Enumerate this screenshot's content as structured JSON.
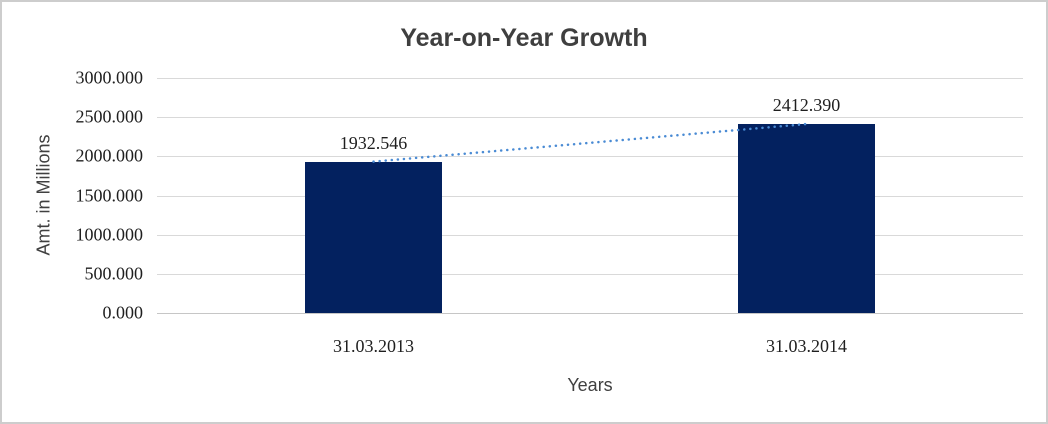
{
  "window": {
    "background": "#ffffff",
    "border_color": "#cdcdcd"
  },
  "chart_data": {
    "type": "bar",
    "title": "Year-on-Year Growth",
    "xlabel": "Years",
    "ylabel": "Amt. in Millions",
    "categories": [
      "31.03.2013",
      "31.03.2014"
    ],
    "values": [
      1932.546,
      2412.39
    ],
    "data_labels": [
      "1932.546",
      "2412.390"
    ],
    "y_ticks": [
      0,
      500,
      1000,
      1500,
      2000,
      2500,
      3000
    ],
    "y_tick_labels": [
      "0.000",
      "500.000",
      "1000.000",
      "1500.000",
      "2000.000",
      "2500.000",
      "3000.000"
    ],
    "ylim": [
      0,
      3000
    ],
    "grid": "horizontal",
    "legend": "none",
    "bar_color": "#03215f",
    "gridline_color": "#d9d9d9",
    "title_color": "#3f3f3f",
    "axis_text_color": "#1f1f1f",
    "trendline": {
      "style": "dotted",
      "color": "#4a8bd4",
      "points": [
        [
          0,
          1932.546
        ],
        [
          1,
          2412.39
        ]
      ]
    }
  }
}
